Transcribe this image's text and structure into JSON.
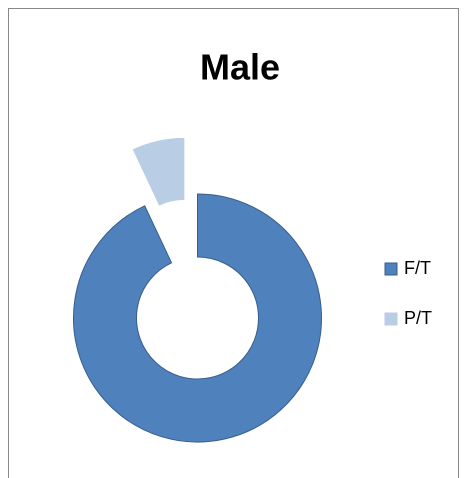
{
  "chart_data": {
    "type": "donut",
    "title": "Male",
    "categories": [
      "F/T",
      "P/T"
    ],
    "values": [
      93,
      7
    ],
    "colors": [
      "#4f81bd",
      "#b9cde5"
    ],
    "legend": "right"
  }
}
